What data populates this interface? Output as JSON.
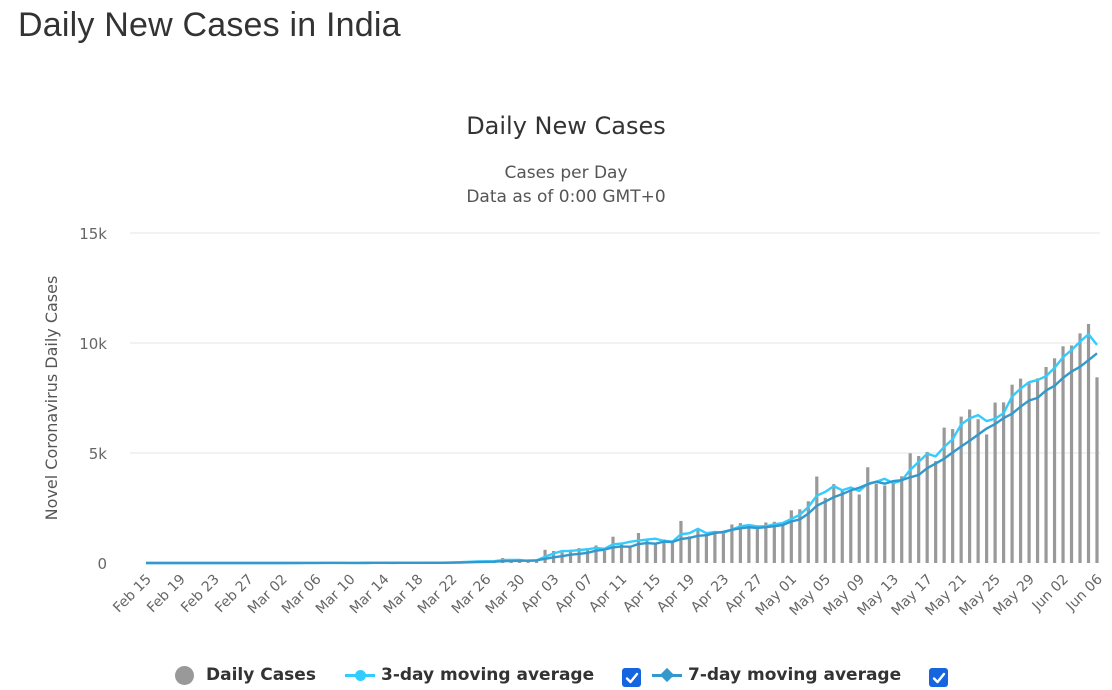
{
  "page": {
    "title": "Daily New Cases in India"
  },
  "colors": {
    "daily": "#999999",
    "avg3": "#33ccff",
    "avg7": "#3399cc",
    "checkbox": "#1565e0",
    "grid": "#e6e6e6"
  },
  "chart_data": {
    "type": "bar",
    "title": "Daily New Cases",
    "subtitle_lines": [
      "Cases per Day",
      "Data as of 0:00 GMT+0"
    ],
    "ylabel": "Novel Coronavirus Daily Cases",
    "ylim": [
      0,
      15000
    ],
    "yticks": [
      0,
      5000,
      10000,
      15000
    ],
    "ytick_labels": [
      "0",
      "5k",
      "10k",
      "15k"
    ],
    "grid": true,
    "legend_position": "bottom-center",
    "x_labels": [
      "Feb 15",
      "Feb 19",
      "Feb 23",
      "Feb 27",
      "Mar 02",
      "Mar 06",
      "Mar 10",
      "Mar 14",
      "Mar 18",
      "Mar 22",
      "Mar 26",
      "Mar 30",
      "Apr 03",
      "Apr 07",
      "Apr 11",
      "Apr 15",
      "Apr 19",
      "Apr 23",
      "Apr 27",
      "May 01",
      "May 05",
      "May 09",
      "May 13",
      "May 17",
      "May 21",
      "May 25",
      "May 29",
      "Jun 02",
      "Jun 06"
    ],
    "x_start": "Feb 15",
    "x_end": "Jun 08",
    "series": [
      {
        "name": "Daily Cases",
        "type": "bar",
        "values": [
          0,
          0,
          0,
          0,
          0,
          0,
          0,
          0,
          0,
          0,
          0,
          0,
          0,
          0,
          0,
          1,
          0,
          2,
          0,
          2,
          1,
          22,
          2,
          1,
          3,
          5,
          9,
          7,
          6,
          11,
          5,
          13,
          10,
          14,
          12,
          20,
          44,
          51,
          74,
          86,
          64,
          103,
          227,
          91,
          94,
          102,
          146,
          601,
          545,
          485,
          609,
          675,
          591,
          796,
          553,
          1195,
          896,
          796,
          1364,
          1036,
          909,
          1073,
          935,
          1912,
          1211,
          1540,
          1307,
          1383,
          1429,
          1752,
          1813,
          1607,
          1561,
          1842,
          1873,
          1738,
          2394,
          2442,
          2806,
          3932,
          2963,
          3587,
          3364,
          3344,
          3113,
          4353,
          3607,
          3524,
          3763,
          3942,
          4987,
          4864,
          5050,
          4630,
          6154,
          6088,
          6654,
          6977,
          6535,
          5843,
          7293,
          7300,
          8105,
          8380,
          8171,
          8392,
          8909,
          9304,
          9851,
          9887,
          10438,
          10864,
          8442
        ]
      },
      {
        "name": "3-day moving average",
        "type": "line",
        "values": [
          0,
          0,
          0,
          0,
          0,
          0,
          0,
          0,
          0,
          0,
          0,
          0,
          0,
          0,
          0,
          0,
          0,
          1,
          1,
          1,
          1,
          8,
          8,
          8,
          2,
          3,
          6,
          7,
          7,
          8,
          7,
          10,
          9,
          12,
          12,
          15,
          25,
          38,
          56,
          70,
          75,
          84,
          131,
          140,
          137,
          96,
          114,
          283,
          431,
          544,
          546,
          590,
          625,
          687,
          647,
          848,
          881,
          962,
          1019,
          1065,
          1103,
          1006,
          972,
          1307,
          1353,
          1554,
          1353,
          1410,
          1373,
          1521,
          1665,
          1724,
          1660,
          1670,
          1759,
          1818,
          2002,
          2191,
          2547,
          3060,
          3234,
          3494,
          3305,
          3432,
          3274,
          3603,
          3691,
          3828,
          3631,
          3743,
          4231,
          4598,
          4967,
          4848,
          5278,
          5624,
          6299,
          6573,
          6722,
          6452,
          6557,
          6812,
          7566,
          7928,
          8219,
          8314,
          8491,
          8868,
          9355,
          9681,
          10059,
          10396,
          9915
        ]
      },
      {
        "name": "7-day moving average",
        "type": "line",
        "values": [
          0,
          0,
          0,
          0,
          0,
          0,
          0,
          0,
          0,
          0,
          0,
          0,
          0,
          0,
          0,
          0,
          0,
          0,
          0,
          1,
          1,
          4,
          4,
          4,
          4,
          5,
          6,
          7,
          7,
          6,
          7,
          8,
          9,
          9,
          10,
          11,
          16,
          22,
          31,
          41,
          49,
          61,
          84,
          89,
          101,
          111,
          120,
          190,
          256,
          308,
          380,
          410,
          463,
          558,
          607,
          709,
          755,
          734,
          862,
          904,
          878,
          972,
          953,
          1091,
          1141,
          1236,
          1264,
          1361,
          1416,
          1507,
          1575,
          1625,
          1593,
          1626,
          1674,
          1726,
          1889,
          1979,
          2244,
          2601,
          2794,
          2994,
          3132,
          3303,
          3421,
          3579,
          3694,
          3605,
          3722,
          3767,
          3896,
          4002,
          4308,
          4521,
          4743,
          5024,
          5297,
          5556,
          5836,
          6113,
          6316,
          6586,
          6786,
          7106,
          7386,
          7504,
          7844,
          8052,
          8413,
          8703,
          8917,
          9218,
          9532
        ]
      }
    ]
  },
  "legend": {
    "items": [
      {
        "label": "Daily Cases",
        "checked": false
      },
      {
        "label": "3-day moving average",
        "checked": true
      },
      {
        "label": "7-day moving average",
        "checked": true
      }
    ]
  }
}
